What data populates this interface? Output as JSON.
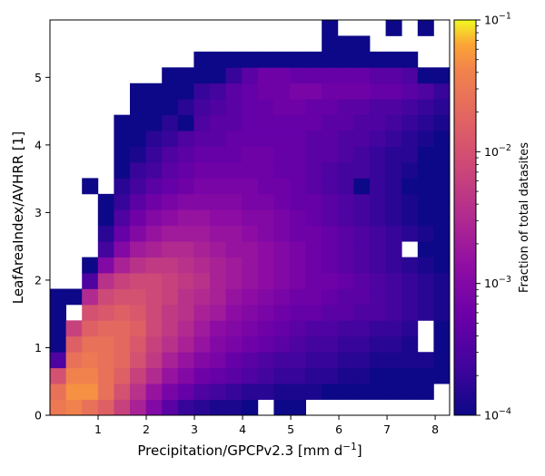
{
  "chart_data": {
    "type": "heatmap",
    "xlabel": "Precipitation/GPCPv2.3 [mm d",
    "xlabel_sup": "−1",
    "xlabel_end": "]",
    "ylabel": "LeafAreaIndex/AVHRR [1]",
    "colorbar_label": "Fraction of total datasites",
    "xlim": [
      0,
      8.3
    ],
    "ylim": [
      0,
      5.85
    ],
    "x_ticks": [
      "1",
      "2",
      "3",
      "4",
      "5",
      "6",
      "7",
      "8"
    ],
    "y_ticks": [
      "0",
      "1",
      "2",
      "3",
      "4",
      "5"
    ],
    "colorbar_scale": "log",
    "colorbar_range": [
      0.0001,
      0.1
    ],
    "colorbar_ticks": [
      {
        "base": "10",
        "exp": "−1"
      },
      {
        "base": "10",
        "exp": "−2"
      },
      {
        "base": "10",
        "exp": "−3"
      },
      {
        "base": "10",
        "exp": "−4"
      }
    ],
    "colormap": "plasma",
    "bins": {
      "nx": 25,
      "ny": 25,
      "x_start": 0,
      "x_step": 0.332,
      "y_start": 0,
      "y_step": 0.234
    },
    "log10_fraction_grid": [
      [
        -1.5,
        -1.4,
        -1.6,
        -1.8,
        -2.2,
        -2.6,
        -3.0,
        -3.4,
        -3.7,
        -3.8,
        -3.9,
        -3.9,
        -4.0,
        null,
        -4.0,
        -4.0,
        null,
        null,
        null,
        null,
        null,
        null,
        null,
        null,
        null
      ],
      [
        -1.6,
        -1.3,
        -1.3,
        -1.6,
        -2.0,
        -2.4,
        -2.8,
        -3.1,
        -3.3,
        -3.5,
        -3.6,
        -3.7,
        -3.8,
        -3.8,
        -3.9,
        -3.9,
        -3.9,
        -4.0,
        -4.0,
        -4.0,
        -4.0,
        -4.0,
        -4.0,
        -4.0,
        null
      ],
      [
        -2.0,
        -1.4,
        -1.4,
        -1.6,
        -1.8,
        -2.2,
        -2.5,
        -2.8,
        -3.0,
        -3.2,
        -3.3,
        -3.4,
        -3.5,
        -3.6,
        -3.7,
        -3.7,
        -3.8,
        -3.8,
        -3.9,
        -3.9,
        -4.0,
        -4.0,
        -4.0,
        -4.0,
        -4.0
      ],
      [
        -3.5,
        -1.6,
        -1.5,
        -1.6,
        -1.7,
        -2.0,
        -2.3,
        -2.6,
        -2.8,
        -3.0,
        -3.1,
        -3.3,
        -3.4,
        -3.5,
        -3.6,
        -3.6,
        -3.7,
        -3.7,
        -3.8,
        -3.8,
        -3.9,
        -3.9,
        -3.9,
        -3.9,
        -4.0
      ],
      [
        -4.0,
        -1.8,
        -1.6,
        -1.6,
        -1.7,
        -1.9,
        -2.2,
        -2.4,
        -2.6,
        -2.8,
        -3.0,
        -3.1,
        -3.2,
        -3.3,
        -3.4,
        -3.5,
        -3.6,
        -3.6,
        -3.7,
        -3.7,
        -3.8,
        -3.8,
        -3.9,
        null,
        -4.0
      ],
      [
        -4.0,
        -2.2,
        -1.8,
        -1.7,
        -1.7,
        -1.8,
        -2.1,
        -2.3,
        -2.5,
        -2.7,
        -2.9,
        -3.0,
        -3.1,
        -3.2,
        -3.3,
        -3.4,
        -3.5,
        -3.5,
        -3.6,
        -3.6,
        -3.7,
        -3.7,
        -3.8,
        null,
        -4.0
      ],
      [
        -4.0,
        null,
        -2.0,
        -1.9,
        -1.8,
        -1.9,
        -2.1,
        -2.3,
        -2.4,
        -2.6,
        -2.7,
        -2.9,
        -3.0,
        -3.1,
        -3.2,
        -3.3,
        -3.3,
        -3.4,
        -3.4,
        -3.5,
        -3.5,
        -3.6,
        -3.7,
        -3.8,
        -3.9
      ],
      [
        -4.0,
        -4.0,
        -2.5,
        -2.1,
        -2.0,
        -2.0,
        -2.1,
        -2.2,
        -2.4,
        -2.5,
        -2.6,
        -2.8,
        -2.9,
        -3.0,
        -3.1,
        -3.2,
        -3.2,
        -3.3,
        -3.4,
        -3.4,
        -3.5,
        -3.6,
        -3.7,
        -3.8,
        -3.9
      ],
      [
        null,
        null,
        -3.5,
        -2.4,
        -2.2,
        -2.1,
        -2.1,
        -2.2,
        -2.3,
        -2.4,
        -2.6,
        -2.7,
        -2.8,
        -2.9,
        -3.0,
        -3.1,
        -3.2,
        -3.2,
        -3.3,
        -3.4,
        -3.5,
        -3.6,
        -3.7,
        -3.8,
        -3.9
      ],
      [
        null,
        null,
        -4.0,
        -3.0,
        -2.6,
        -2.4,
        -2.3,
        -2.3,
        -2.4,
        -2.5,
        -2.6,
        -2.7,
        -2.8,
        -2.9,
        -3.0,
        -3.1,
        -3.2,
        -3.3,
        -3.4,
        -3.5,
        -3.6,
        -3.7,
        -3.8,
        -3.9,
        -4.0
      ],
      [
        null,
        null,
        null,
        -3.6,
        -3.0,
        -2.7,
        -2.6,
        -2.5,
        -2.5,
        -2.6,
        -2.7,
        -2.8,
        -2.8,
        -2.9,
        -3.0,
        -3.1,
        -3.2,
        -3.3,
        -3.4,
        -3.5,
        -3.6,
        -3.7,
        null,
        -4.0,
        -4.0
      ],
      [
        null,
        null,
        null,
        -3.8,
        -3.3,
        -3.0,
        -2.8,
        -2.7,
        -2.7,
        -2.7,
        -2.8,
        -2.8,
        -2.9,
        -3.0,
        -3.1,
        -3.2,
        -3.2,
        -3.3,
        -3.4,
        -3.5,
        -3.6,
        -3.7,
        -3.8,
        -3.9,
        -4.0
      ],
      [
        null,
        null,
        null,
        -4.0,
        -3.5,
        -3.2,
        -3.0,
        -2.9,
        -2.8,
        -2.8,
        -2.9,
        -2.9,
        -3.0,
        -3.0,
        -3.1,
        -3.2,
        -3.3,
        -3.4,
        -3.5,
        -3.6,
        -3.7,
        -3.8,
        -3.9,
        -4.0,
        -4.0
      ],
      [
        null,
        null,
        null,
        -4.0,
        -3.7,
        -3.4,
        -3.2,
        -3.1,
        -3.0,
        -3.0,
        -3.0,
        -3.0,
        -3.1,
        -3.1,
        -3.2,
        -3.3,
        -3.3,
        -3.4,
        -3.5,
        -3.6,
        -3.7,
        -3.8,
        -3.9,
        -4.0,
        -4.0
      ],
      [
        null,
        null,
        -4.0,
        null,
        -3.8,
        -3.6,
        -3.4,
        -3.3,
        -3.2,
        -3.1,
        -3.1,
        -3.1,
        -3.1,
        -3.2,
        -3.2,
        -3.3,
        -3.4,
        -3.5,
        -3.6,
        -4.0,
        -3.7,
        -3.8,
        -4.0,
        -4.0,
        -4.0
      ],
      [
        null,
        null,
        null,
        null,
        -4.0,
        -3.7,
        -3.6,
        -3.4,
        -3.3,
        -3.2,
        -3.2,
        -3.2,
        -3.2,
        -3.2,
        -3.3,
        -3.3,
        -3.4,
        -3.5,
        -3.6,
        -3.6,
        -3.7,
        -3.8,
        -3.9,
        -4.0,
        -4.0
      ],
      [
        null,
        null,
        null,
        null,
        -4.0,
        -3.9,
        -3.7,
        -3.5,
        -3.4,
        -3.3,
        -3.3,
        -3.3,
        -3.2,
        -3.2,
        -3.3,
        -3.3,
        -3.4,
        -3.4,
        -3.5,
        -3.6,
        -3.7,
        -3.8,
        -3.8,
        -4.0,
        -4.0
      ],
      [
        null,
        null,
        null,
        null,
        -4.0,
        -4.0,
        -3.8,
        -3.7,
        -3.5,
        -3.4,
        -3.4,
        -3.3,
        -3.3,
        -3.3,
        -3.3,
        -3.3,
        -3.4,
        -3.4,
        -3.5,
        -3.5,
        -3.6,
        -3.7,
        -3.8,
        -3.9,
        -4.0
      ],
      [
        null,
        null,
        null,
        null,
        -4.0,
        -4.0,
        -4.0,
        -3.8,
        -4.0,
        -3.5,
        -3.4,
        -3.4,
        -3.3,
        -3.3,
        -3.3,
        -3.3,
        -3.3,
        -3.4,
        -3.4,
        -3.5,
        -3.5,
        -3.6,
        -3.7,
        -3.8,
        -3.9
      ],
      [
        null,
        null,
        null,
        null,
        null,
        -4.0,
        -4.0,
        -4.0,
        -3.8,
        -3.6,
        -3.5,
        -3.4,
        -3.3,
        -3.3,
        -3.2,
        -3.2,
        -3.3,
        -3.3,
        -3.4,
        -3.4,
        -3.5,
        -3.5,
        -3.6,
        -3.7,
        -3.8
      ],
      [
        null,
        null,
        null,
        null,
        null,
        -4.0,
        -4.0,
        -4.0,
        -4.0,
        -3.7,
        -3.6,
        -3.4,
        -3.3,
        -3.2,
        -3.2,
        -3.1,
        -3.1,
        -3.2,
        -3.2,
        -3.2,
        -3.3,
        -3.3,
        -3.4,
        -3.5,
        -3.7
      ],
      [
        null,
        null,
        null,
        null,
        null,
        null,
        null,
        -4.0,
        -4.0,
        -4.0,
        -4.0,
        -3.7,
        -3.4,
        -3.2,
        -3.2,
        -3.3,
        -3.3,
        -3.3,
        -3.3,
        -3.3,
        -3.4,
        -3.4,
        -3.5,
        -4.0,
        -4.0
      ],
      [
        null,
        null,
        null,
        null,
        null,
        null,
        null,
        null,
        null,
        -4.0,
        -4.0,
        -4.0,
        -4.0,
        -4.0,
        -4.0,
        -4.0,
        -4.0,
        -4.0,
        -4.0,
        -4.0,
        -4.0,
        -4.0,
        -4.0,
        null,
        null
      ],
      [
        null,
        null,
        null,
        null,
        null,
        null,
        null,
        null,
        null,
        null,
        null,
        null,
        null,
        null,
        null,
        null,
        null,
        -4.0,
        -4.0,
        -4.0,
        null,
        null,
        null,
        null,
        null
      ],
      [
        null,
        null,
        null,
        null,
        null,
        null,
        null,
        null,
        null,
        null,
        null,
        null,
        null,
        null,
        null,
        null,
        null,
        -4.0,
        null,
        null,
        null,
        -4.0,
        null,
        -4.0,
        null
      ]
    ]
  }
}
